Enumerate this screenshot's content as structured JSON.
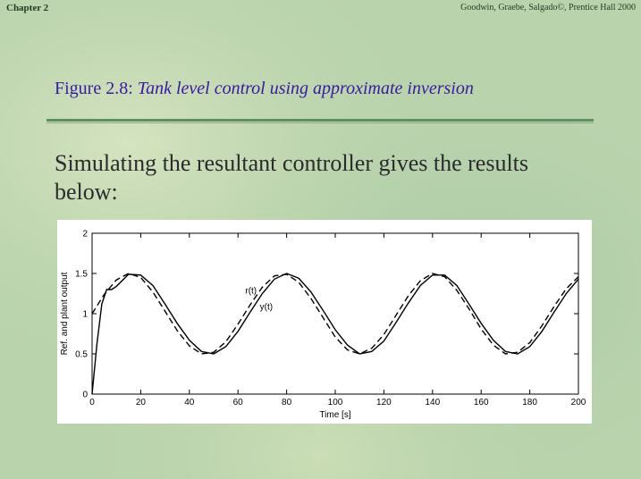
{
  "header": {
    "chapter": "Chapter 2",
    "credit": "Goodwin, Graebe, Salgado©, Prentice Hall 2000"
  },
  "slide": {
    "figure_label": "Figure 2.8:",
    "figure_caption": "Tank level control using approximate inversion",
    "body_text": "Simulating the resultant controller gives the results below:"
  },
  "chart_data": {
    "type": "line",
    "xlabel": "Time [s]",
    "ylabel": "Ref. and plant output",
    "xlim": [
      0,
      200
    ],
    "ylim": [
      0,
      2
    ],
    "xticks": [
      0,
      20,
      40,
      60,
      80,
      100,
      120,
      140,
      160,
      180,
      200
    ],
    "yticks": [
      0,
      0.5,
      1,
      1.5,
      2
    ],
    "ytick_labels": [
      "0",
      "0.5",
      "1",
      "1.5",
      "2"
    ],
    "grid": false,
    "annotations": [
      {
        "text": "r(t)",
        "x": 63,
        "y": 1.25
      },
      {
        "text": "y(t)",
        "x": 69,
        "y": 1.05
      }
    ],
    "series": [
      {
        "line_style": "dashed",
        "x": [
          0,
          5,
          10,
          15,
          20,
          25,
          30,
          35,
          40,
          45,
          50,
          55,
          60,
          65,
          70,
          75,
          80,
          85,
          90,
          95,
          100,
          105,
          110,
          115,
          120,
          125,
          130,
          135,
          140,
          145,
          150,
          155,
          160,
          165,
          170,
          175,
          180,
          185,
          190,
          195,
          200
        ],
        "values": [
          1.0,
          1.24,
          1.42,
          1.5,
          1.45,
          1.27,
          1.03,
          0.79,
          0.6,
          0.5,
          0.52,
          0.65,
          0.87,
          1.11,
          1.33,
          1.47,
          1.49,
          1.39,
          1.19,
          0.95,
          0.71,
          0.55,
          0.5,
          0.57,
          0.74,
          0.98,
          1.22,
          1.41,
          1.5,
          1.46,
          1.29,
          1.06,
          0.81,
          0.61,
          0.5,
          0.52,
          0.64,
          0.85,
          1.09,
          1.31,
          1.46
        ]
      },
      {
        "line_style": "solid",
        "x": [
          0,
          2,
          4,
          6,
          8,
          10,
          15,
          20,
          25,
          30,
          35,
          40,
          45,
          50,
          55,
          60,
          65,
          70,
          75,
          80,
          85,
          90,
          95,
          100,
          105,
          110,
          115,
          120,
          125,
          130,
          135,
          140,
          145,
          150,
          155,
          160,
          165,
          170,
          175,
          180,
          185,
          190,
          195,
          200
        ],
        "values": [
          0.0,
          0.62,
          1.12,
          1.3,
          1.3,
          1.34,
          1.49,
          1.48,
          1.35,
          1.12,
          0.88,
          0.67,
          0.53,
          0.5,
          0.59,
          0.78,
          1.02,
          1.25,
          1.43,
          1.5,
          1.44,
          1.27,
          1.04,
          0.8,
          0.61,
          0.5,
          0.53,
          0.66,
          0.89,
          1.13,
          1.35,
          1.48,
          1.48,
          1.35,
          1.12,
          0.88,
          0.67,
          0.53,
          0.5,
          0.59,
          0.78,
          1.02,
          1.25,
          1.43
        ]
      }
    ]
  },
  "colors": {
    "background": "#b9d3ad",
    "title_blue": "#3a1aa0",
    "rule_green": "#5f8f60",
    "text_dark": "#2b2b2b"
  }
}
